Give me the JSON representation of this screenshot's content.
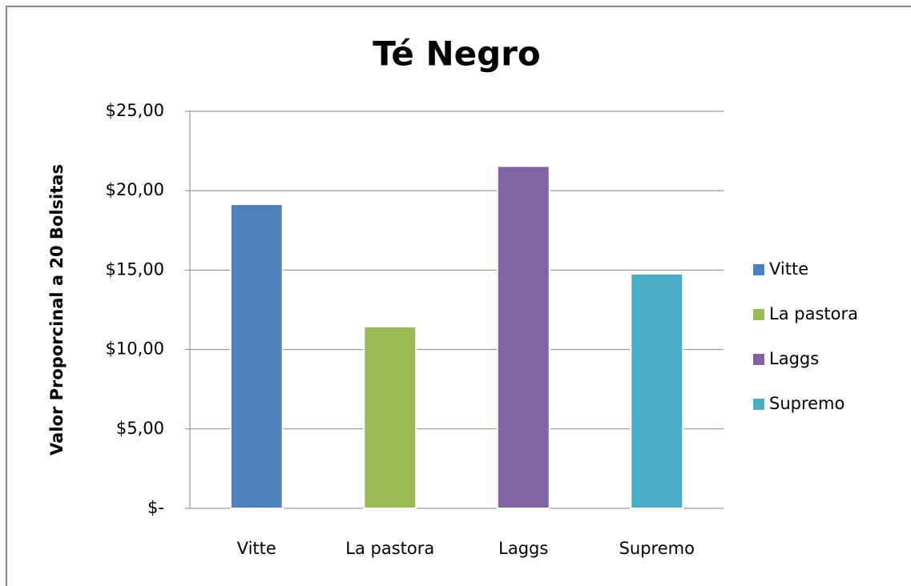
{
  "chart_data": {
    "type": "bar",
    "title": "Té Negro",
    "y_label": "Valor Proporcinal a 20 Bolsitas",
    "categories": [
      "Vitte",
      "La pastora",
      "Laggs",
      "Supremo"
    ],
    "values": [
      19.15,
      11.45,
      21.55,
      14.77
    ],
    "colors": [
      "#4f81bd",
      "#9bbb59",
      "#8064a2",
      "#4bacc6"
    ],
    "ylim": [
      0,
      25
    ],
    "yticks": [
      {
        "value": 0,
        "label": "$-"
      },
      {
        "value": 5,
        "label": "$5,00"
      },
      {
        "value": 10,
        "label": "$10,00"
      },
      {
        "value": 15,
        "label": "$15,00"
      },
      {
        "value": 20,
        "label": "$20,00"
      },
      {
        "value": 25,
        "label": "$25,00"
      }
    ],
    "grid": true,
    "legend": "right"
  }
}
